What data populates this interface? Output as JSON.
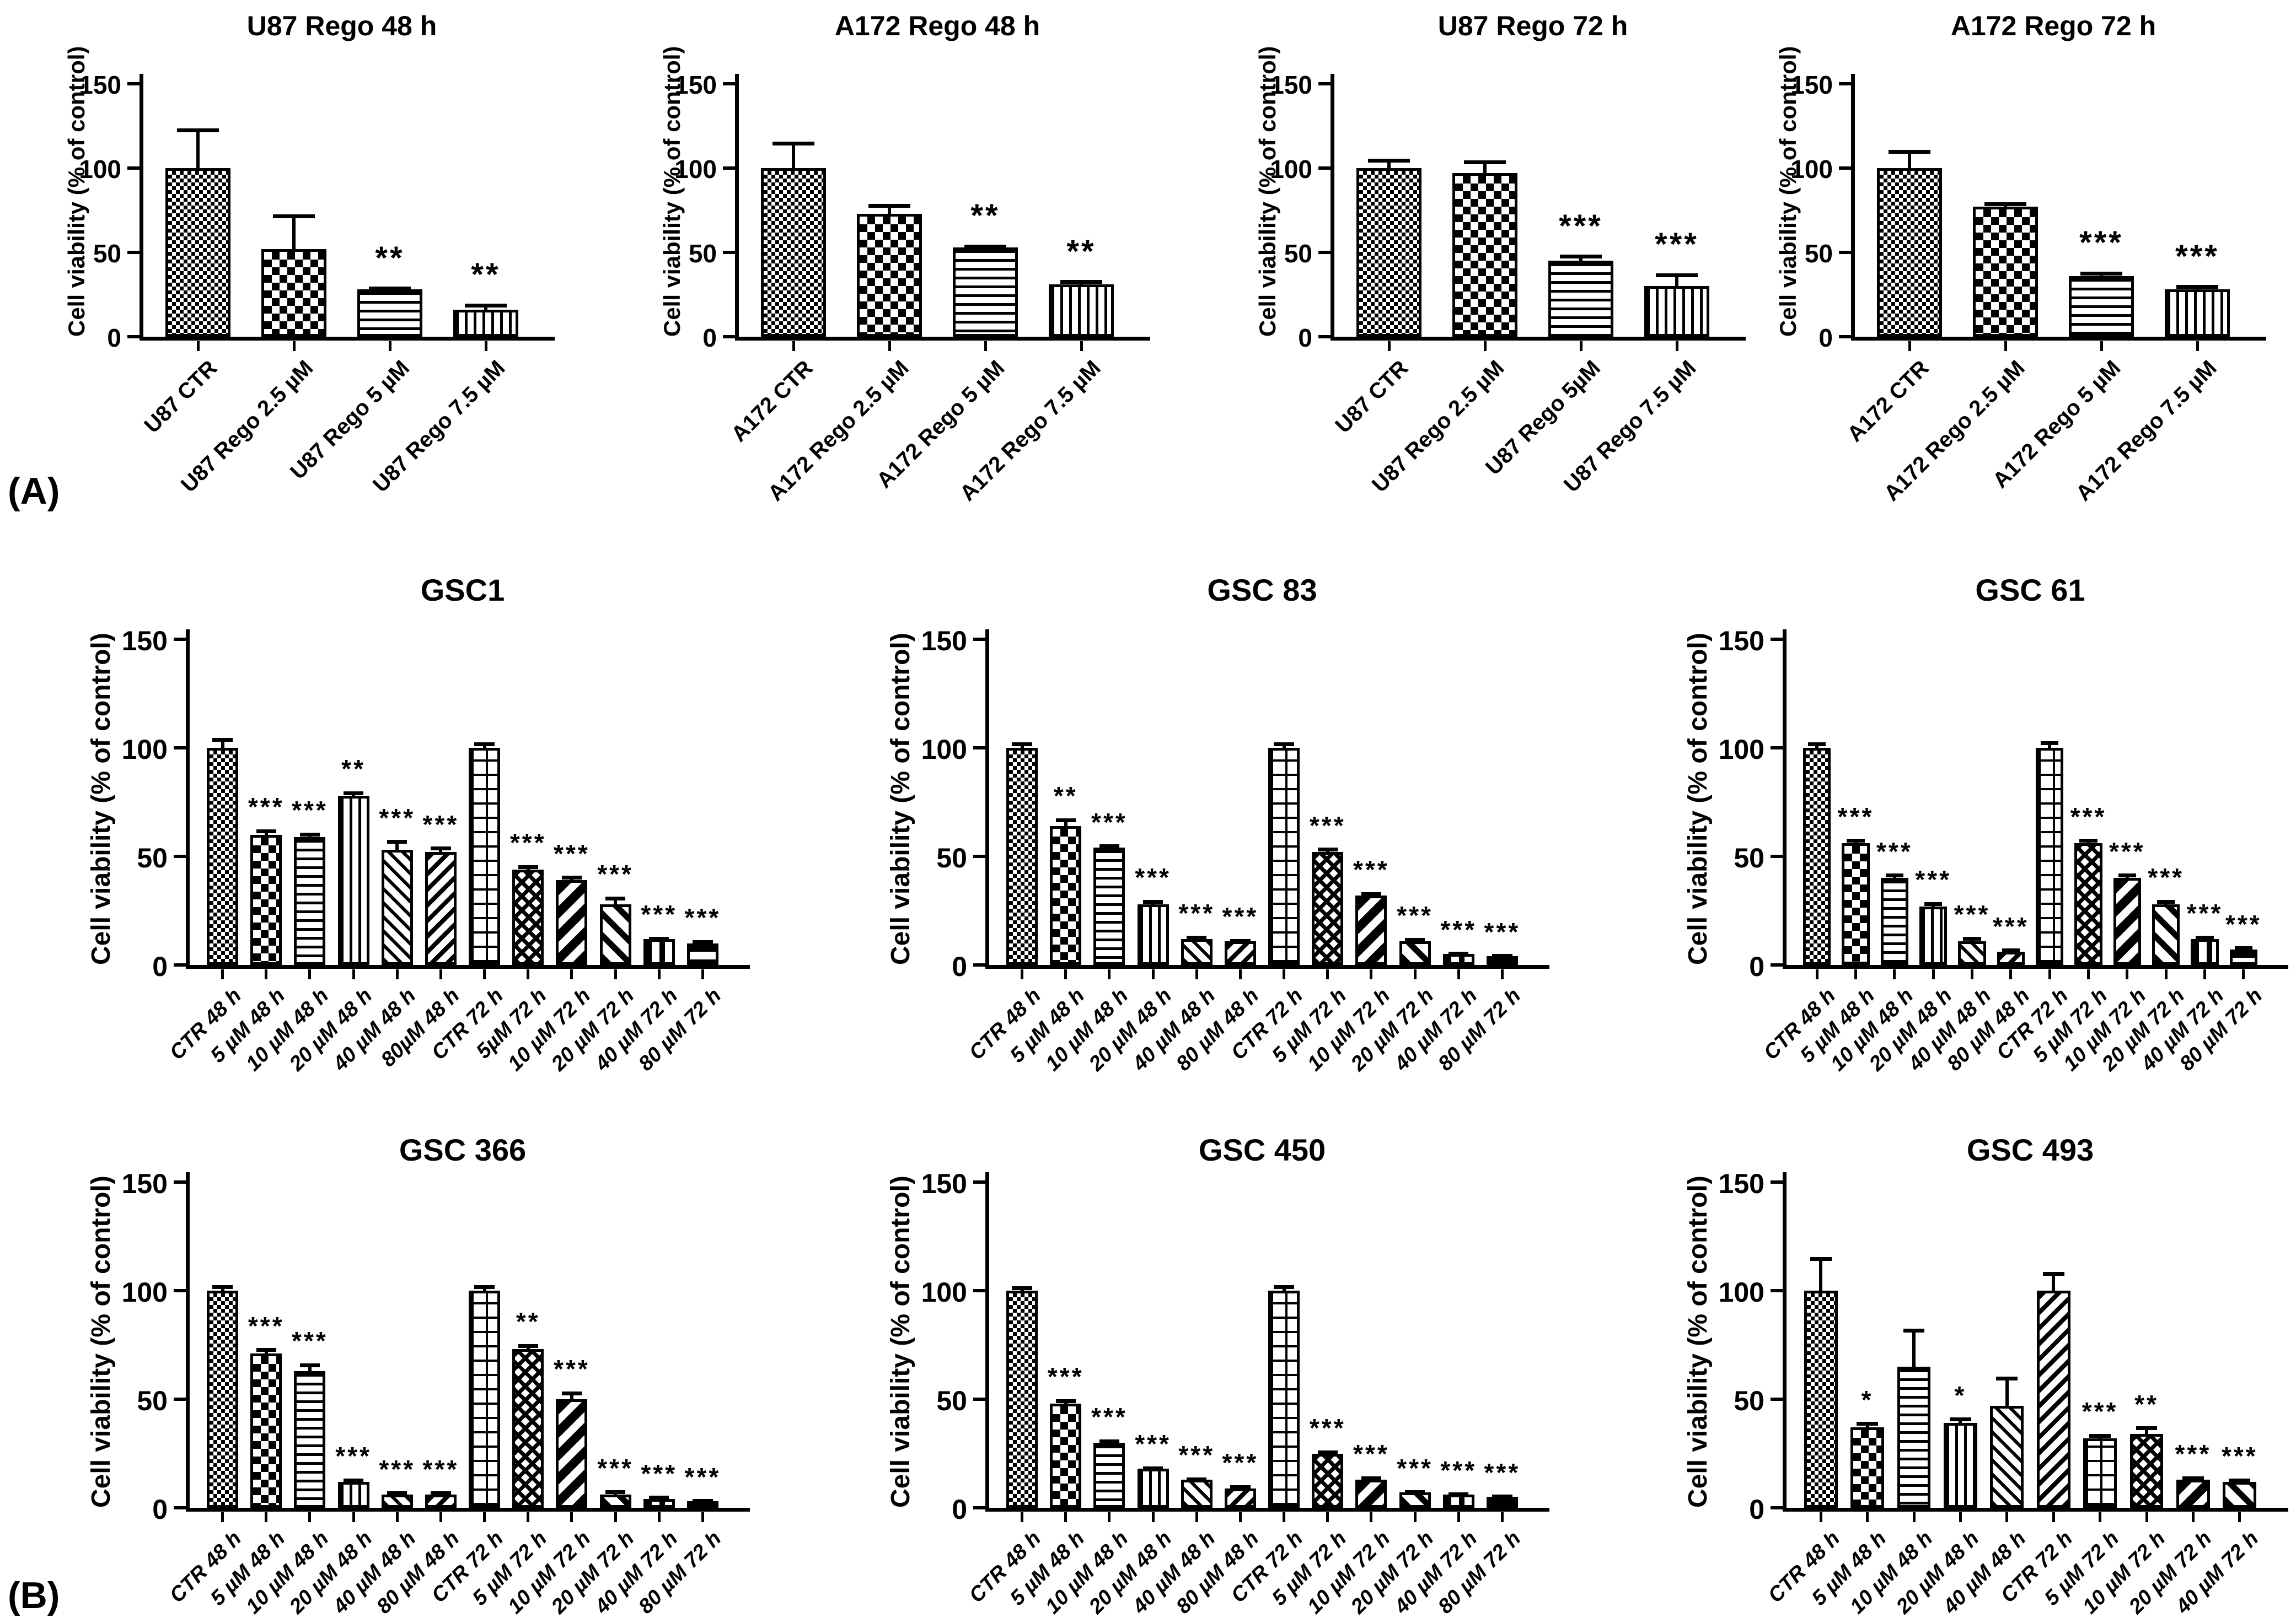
{
  "figure": {
    "panel_a_label": "(A)",
    "panel_b_label": "(B)",
    "background": "#ffffff",
    "ink": "#000000"
  },
  "chart_data": [
    {
      "type": "bar",
      "panel": "A",
      "title": "U87 Rego 48 h",
      "ylabel": "Cell viability (% of control)",
      "ylim": [
        0,
        150
      ],
      "yticks": [
        0,
        50,
        100,
        150
      ],
      "categories": [
        "U87 CTR",
        "U87 Rego 2.5 µM",
        "U87  Rego 5 µM",
        "U87 Rego 7.5 µM"
      ],
      "values": [
        100,
        52,
        28,
        16
      ],
      "errors": [
        23,
        20,
        1,
        3
      ],
      "sig": [
        "",
        "",
        "**",
        "**"
      ],
      "patterns": [
        "fine-check",
        "coarse-check",
        "hlines",
        "vlines"
      ]
    },
    {
      "type": "bar",
      "panel": "A",
      "title": "A172 Rego 48 h",
      "ylabel": "Cell viability (% of control)",
      "ylim": [
        0,
        150
      ],
      "yticks": [
        0,
        50,
        100,
        150
      ],
      "categories": [
        "A172 CTR",
        "A172 Rego 2.5 µM",
        "A172 Rego 5 µM",
        "A172 Rego 7.5 µM"
      ],
      "values": [
        100,
        73,
        53,
        31
      ],
      "errors": [
        15,
        5,
        1,
        2
      ],
      "sig": [
        "",
        "",
        "**",
        "**"
      ],
      "patterns": [
        "fine-check",
        "coarse-check",
        "hlines",
        "vlines"
      ]
    },
    {
      "type": "bar",
      "panel": "A",
      "title": "U87 Rego 72 h",
      "ylabel": "Cell viability (% of control)",
      "ylim": [
        0,
        150
      ],
      "yticks": [
        0,
        50,
        100,
        150
      ],
      "categories": [
        "U87 CTR",
        "U87 Rego 2.5 µM",
        "U87 Rego 5µM",
        "U87 Rego 7.5 µM"
      ],
      "values": [
        100,
        97,
        45,
        30
      ],
      "errors": [
        5,
        7,
        3,
        7
      ],
      "sig": [
        "",
        "",
        "***",
        "***"
      ],
      "patterns": [
        "fine-check",
        "coarse-check",
        "hlines",
        "vlines"
      ]
    },
    {
      "type": "bar",
      "panel": "A",
      "title": "A172 Rego 72 h",
      "ylabel": "Cell viability (% of control)",
      "ylim": [
        0,
        150
      ],
      "yticks": [
        0,
        50,
        100,
        150
      ],
      "categories": [
        "A172 CTR",
        "A172 Rego 2.5 µM",
        "A172 Rego 5 µM",
        "A172 Rego 7.5 µM"
      ],
      "values": [
        100,
        77,
        36,
        28
      ],
      "errors": [
        10,
        2,
        2,
        2
      ],
      "sig": [
        "",
        "",
        "***",
        "***"
      ],
      "patterns": [
        "fine-check",
        "coarse-check",
        "hlines",
        "vlines"
      ]
    },
    {
      "type": "bar",
      "panel": "B",
      "title": "GSC1",
      "ylabel": "Cell viability (% of control)",
      "ylim": [
        0,
        150
      ],
      "yticks": [
        0,
        50,
        100,
        150
      ],
      "categories": [
        "CTR 48 h",
        "5 µM 48 h",
        "10 µM 48 h",
        "20 µM 48 h",
        "40 µM 48 h",
        "80µM 48 h",
        "CTR  72 h",
        "5µM 72 h",
        "10 µM 72 h",
        "20 µM 72 h",
        "40 µM 72 h",
        "80 µM 72 h"
      ],
      "values": [
        100,
        60,
        59,
        78,
        53,
        52,
        100,
        44,
        39,
        28,
        12,
        10
      ],
      "errors": [
        4,
        2,
        1.5,
        1.5,
        4,
        2,
        2,
        1.5,
        1.5,
        3,
        0.5,
        1
      ],
      "sig": [
        "",
        "***",
        "***",
        "**",
        "***",
        "***",
        "",
        "***",
        "***",
        "***",
        "***",
        "***"
      ],
      "patterns": [
        "fine-check",
        "coarse-check",
        "hlines",
        "vlines",
        "diag1",
        "diag2",
        "grid",
        "diag-check",
        "thick-back",
        "thick-fwd",
        "vwide",
        "hwide"
      ]
    },
    {
      "type": "bar",
      "panel": "B",
      "title": "GSC 83",
      "ylabel": "Cell viability (% of control)",
      "ylim": [
        0,
        150
      ],
      "yticks": [
        0,
        50,
        100,
        150
      ],
      "categories": [
        "CTR 48 h",
        "5 µM 48 h",
        "10 µM 48 h",
        "20 µM 48 h",
        "40 µM 48 h",
        "80 µM 48 h",
        "CTR 72 h",
        "5 µM 72 h",
        "10 µM 72 h",
        "20 µM 72 h",
        "40 µM 72 h",
        "80 µM 72 h"
      ],
      "values": [
        100,
        64,
        54,
        28,
        12,
        11,
        100,
        52,
        32,
        11,
        5,
        4
      ],
      "errors": [
        2,
        3,
        1,
        1.5,
        1,
        0.5,
        2,
        1.5,
        1,
        1,
        0.5,
        0.5
      ],
      "sig": [
        "",
        "**",
        "***",
        "***",
        "***",
        "***",
        "",
        "***",
        "***",
        "***",
        "***",
        "***"
      ],
      "patterns": [
        "fine-check",
        "coarse-check",
        "hlines",
        "vlines",
        "diag1",
        "diag2",
        "grid",
        "diag-check",
        "thick-back",
        "thick-fwd",
        "vwide",
        "hwide"
      ]
    },
    {
      "type": "bar",
      "panel": "B",
      "title": "GSC 61",
      "ylabel": "Cell viability (% of control)",
      "ylim": [
        0,
        150
      ],
      "yticks": [
        0,
        50,
        100,
        150
      ],
      "categories": [
        "CTR 48 h",
        "5 µM 48 h",
        "10 µM 48 h",
        "20 µM 48 h",
        "40 µM 48 h",
        "80 µM 48 h",
        "CTR 72 h",
        "5 µM 72 h",
        "10 µM 72 h",
        "20 µM 72 h",
        "40 µM 72 h",
        "80 µM 72 h"
      ],
      "values": [
        100,
        56,
        40,
        27,
        11,
        6,
        100,
        56,
        40,
        28,
        12,
        7
      ],
      "errors": [
        2,
        1.5,
        1.5,
        1.5,
        1.5,
        1,
        2.5,
        1.5,
        1.5,
        1.5,
        1,
        1
      ],
      "sig": [
        "",
        "***",
        "***",
        "***",
        "***",
        "***",
        "",
        "***",
        "***",
        "***",
        "***",
        "***"
      ],
      "patterns": [
        "fine-check",
        "coarse-check",
        "hlines",
        "vlines",
        "diag1",
        "diag2",
        "grid",
        "diag-check",
        "thick-back",
        "thick-fwd",
        "vwide",
        "hwide"
      ]
    },
    {
      "type": "bar",
      "panel": "B",
      "title": "GSC 366",
      "ylabel": "Cell viability (% of control)",
      "ylim": [
        0,
        150
      ],
      "yticks": [
        0,
        50,
        100,
        150
      ],
      "categories": [
        "CTR 48 h",
        "5 µM 48 h",
        "10 µM 48 h",
        "20 µM 48 h",
        "40 µM 48 h",
        "80 µM 48 h",
        "CTR 72 h",
        "5 µM 72 h",
        "10 µM 72 h",
        "20 µM 72 h",
        "40 µM 72 h",
        "80 µM 72 h"
      ],
      "values": [
        100,
        71,
        63,
        12,
        6,
        6,
        100,
        73,
        50,
        6,
        4,
        3
      ],
      "errors": [
        2,
        2,
        3,
        1,
        1,
        1,
        2,
        2,
        3,
        1.5,
        1,
        0.5
      ],
      "sig": [
        "",
        "***",
        "***",
        "***",
        "***",
        "***",
        "",
        "**",
        "***",
        "***",
        "***",
        "***"
      ],
      "patterns": [
        "fine-check",
        "coarse-check",
        "hlines",
        "vlines",
        "diag1",
        "diag2",
        "grid",
        "diag-check",
        "thick-back",
        "thick-fwd",
        "vwide",
        "hwide"
      ]
    },
    {
      "type": "bar",
      "panel": "B",
      "title": "GSC 450",
      "ylabel": "Cell viability (% of control)",
      "ylim": [
        0,
        150
      ],
      "yticks": [
        0,
        50,
        100,
        150
      ],
      "categories": [
        "CTR 48 h",
        "5 µM 48 h",
        "10 µM 48 h",
        "20 µM 48 h",
        "40 µM 48 h",
        "80 µM 48 h",
        "CTR 72 h",
        "5 µM 72 h",
        "10 µM 72 h",
        "20 µM 72 h",
        "40 µM 72 h",
        "80 µM 72 h"
      ],
      "values": [
        100,
        48,
        30,
        18,
        13,
        9,
        100,
        25,
        13,
        7,
        6,
        5
      ],
      "errors": [
        1.5,
        1.5,
        1,
        0.5,
        0.5,
        1,
        2,
        1,
        1,
        0.5,
        0.5,
        0.5
      ],
      "sig": [
        "",
        "***",
        "***",
        "***",
        "***",
        "***",
        "",
        "***",
        "***",
        "***",
        "***",
        "***"
      ],
      "patterns": [
        "fine-check",
        "coarse-check",
        "hlines",
        "vlines",
        "diag1",
        "diag2",
        "grid",
        "diag-check",
        "thick-back",
        "thick-fwd",
        "vwide",
        "hwide"
      ]
    },
    {
      "type": "bar",
      "panel": "B",
      "title": "GSC 493",
      "ylabel": "Cell viability (% of control)",
      "ylim": [
        0,
        150
      ],
      "yticks": [
        0,
        50,
        100,
        150
      ],
      "categories": [
        "CTR 48 h",
        "5 µM 48 h",
        "10 µM 48 h",
        "20 µM 48 h",
        "40 µM 48 h",
        "CTR 72 h",
        "5 µM 72 h",
        "10 µM 72 h",
        "20 µM 72 h",
        "40 µM 72 h"
      ],
      "values": [
        100,
        37,
        65,
        39,
        47,
        100,
        32,
        34,
        13,
        12
      ],
      "errors": [
        15,
        2,
        17,
        2,
        13,
        8,
        1.5,
        3,
        1,
        1
      ],
      "sig": [
        "",
        "*",
        "",
        "*",
        "",
        "",
        "***",
        "**",
        "***",
        "***"
      ],
      "patterns": [
        "fine-check",
        "coarse-check",
        "hlines",
        "vlines",
        "diag1",
        "diag2",
        "grid",
        "diag-check",
        "thick-back",
        "thick-fwd"
      ]
    }
  ]
}
